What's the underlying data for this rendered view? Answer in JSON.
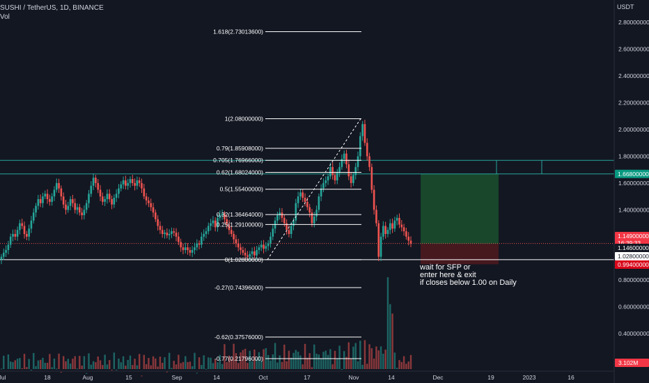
{
  "header": {
    "title": "SUSHI / TetherUS, 1D, BINANCE",
    "volume_label": "Vol",
    "currency": "USDT"
  },
  "note": {
    "lines": [
      "wait for SFP or",
      "enter here & exit",
      "if closes below 1.00 on Daily"
    ]
  },
  "colors": {
    "background": "#131722",
    "bull": "#26a69a",
    "bear": "#ef5350",
    "fib_line": "#ffffff",
    "level_line": "#26a69a",
    "target_zone": "#1b4d2e",
    "stop_zone": "#4d1a1f",
    "current_price_bg": "#f23645",
    "level_badge_bg": "#089981",
    "stop_badge_bg": "#d9071b"
  },
  "chart_data": {
    "type": "candlestick",
    "timeframe": "1D",
    "y_axis": {
      "ticks": [
        "2.80000000",
        "2.60000000",
        "2.40000000",
        "2.20000000",
        "2.00000000",
        "1.80000000",
        "1.60000000",
        "1.40000000",
        "1.20000000"
      ],
      "range": [
        0.98,
        2.82
      ]
    },
    "volume_axis": {
      "ticks": [
        "0.80000000",
        "0.60000000",
        "0.40000000"
      ],
      "badge": "3.102M"
    },
    "x_axis": {
      "labels": [
        "Jul",
        "18",
        "Aug",
        "15",
        "Sep",
        "14",
        "Oct",
        "17",
        "Nov",
        "14",
        "Dec",
        "19",
        "2023",
        "16"
      ]
    },
    "fib_levels": [
      {
        "label": "1.618(2.73013600)",
        "price": 2.730136
      },
      {
        "label": "1(2.08000000)",
        "price": 2.08
      },
      {
        "label": "0.79(1.85908000)",
        "price": 1.85908
      },
      {
        "label": "0.705(1.76966000)",
        "price": 1.76966
      },
      {
        "label": "0.62(1.68024000)",
        "price": 1.68024
      },
      {
        "label": "0.5(1.55400000)",
        "price": 1.554
      },
      {
        "label": "0.32(1.36464000)",
        "price": 1.36464
      },
      {
        "label": "0.25(1.29100000)",
        "price": 1.291
      },
      {
        "label": "0(1.02800000)",
        "price": 1.028
      },
      {
        "label": "-0.27(0.74396000)",
        "price": 0.74396
      },
      {
        "label": "-0.62(0.37576000)",
        "price": 0.37576
      },
      {
        "label": "-0.77(0.21796000)",
        "price": 0.21796
      }
    ],
    "horizontal_levels": [
      1.7697,
      1.668,
      1.028
    ],
    "price_badges": [
      {
        "text": "1.66800000",
        "price": 1.668,
        "kind": "level"
      },
      {
        "text": "1.14900000",
        "sub": "16:39:33",
        "price": 1.149,
        "kind": "current"
      },
      {
        "text": "1.14600000",
        "price": 1.146,
        "kind": "plain"
      },
      {
        "text": "1.02800000",
        "price": 1.028,
        "kind": "white"
      },
      {
        "text": "0.99400000",
        "price": 0.994,
        "kind": "stop"
      }
    ],
    "position": {
      "entry": 1.146,
      "target": 1.668,
      "stop": 0.994
    },
    "current_price": 1.149,
    "closes": [
      1.05,
      1.08,
      1.1,
      1.14,
      1.2,
      1.22,
      1.2,
      1.25,
      1.3,
      1.28,
      1.22,
      1.2,
      1.26,
      1.32,
      1.38,
      1.43,
      1.48,
      1.45,
      1.5,
      1.52,
      1.48,
      1.46,
      1.5,
      1.55,
      1.6,
      1.56,
      1.5,
      1.44,
      1.4,
      1.43,
      1.48,
      1.45,
      1.4,
      1.42,
      1.38,
      1.36,
      1.4,
      1.45,
      1.52,
      1.58,
      1.64,
      1.6,
      1.55,
      1.5,
      1.46,
      1.48,
      1.52,
      1.48,
      1.44,
      1.49,
      1.52,
      1.56,
      1.59,
      1.62,
      1.58,
      1.6,
      1.63,
      1.6,
      1.58,
      1.62,
      1.6,
      1.56,
      1.5,
      1.47,
      1.45,
      1.42,
      1.38,
      1.33,
      1.28,
      1.25,
      1.22,
      1.23,
      1.21,
      1.22,
      1.24,
      1.23,
      1.2,
      1.16,
      1.12,
      1.1,
      1.12,
      1.1,
      1.08,
      1.1,
      1.12,
      1.15,
      1.14,
      1.2,
      1.22,
      1.24,
      1.28,
      1.3,
      1.32,
      1.27,
      1.34,
      1.36,
      1.37,
      1.33,
      1.29,
      1.25,
      1.22,
      1.18,
      1.15,
      1.12,
      1.1,
      1.08,
      1.06,
      1.05,
      1.07,
      1.09,
      1.06,
      1.1,
      1.12,
      1.14,
      1.11,
      1.13,
      1.15,
      1.2,
      1.26,
      1.32,
      1.36,
      1.38,
      1.34,
      1.3,
      1.25,
      1.22,
      1.28,
      1.32,
      1.45,
      1.5,
      1.53,
      1.49,
      1.46,
      1.42,
      1.38,
      1.3,
      1.35,
      1.4,
      1.5,
      1.56,
      1.6,
      1.62,
      1.65,
      1.72,
      1.66,
      1.62,
      1.68,
      1.72,
      1.78,
      1.82,
      1.74,
      1.65,
      1.6,
      1.66,
      1.72,
      1.8,
      1.95,
      2.04,
      1.9,
      1.8,
      1.72,
      1.55,
      1.4,
      1.3,
      1.05,
      1.2,
      1.28,
      1.22,
      1.25,
      1.3,
      1.26,
      1.32,
      1.34,
      1.29,
      1.27,
      1.24,
      1.2,
      1.17,
      1.149
    ]
  }
}
